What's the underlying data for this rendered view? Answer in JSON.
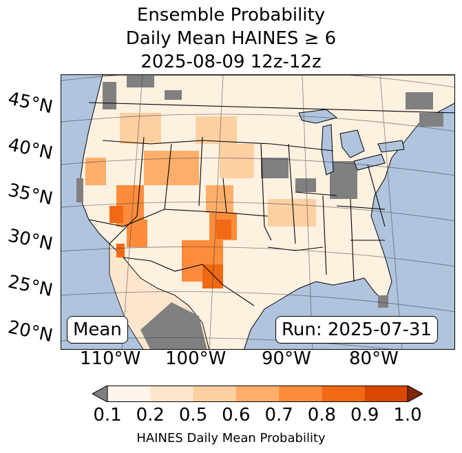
{
  "title": {
    "line1": "Ensemble Probability",
    "line2": "Daily Mean HAINES ≥ 6",
    "line3": "2025-08-09 12z-12z"
  },
  "map": {
    "region": "Continental United States",
    "lat_labels": [
      "45°N",
      "40°N",
      "35°N",
      "30°N",
      "25°N",
      "20°N"
    ],
    "lon_labels": [
      "110°W",
      "100°W",
      "90°W",
      "80°W"
    ],
    "stat_label": "Mean",
    "run_label": "Run: 2025-07-31",
    "ocean_color": "#b0c4de",
    "missing_color": "#808080"
  },
  "colorbar": {
    "ticks": [
      "0.1",
      "0.2",
      "0.5",
      "0.6",
      "0.7",
      "0.8",
      "0.9",
      "1.0"
    ],
    "colors": [
      "#fff5eb",
      "#fee6ce",
      "#fdd0a2",
      "#fdae6b",
      "#fd8d3c",
      "#f16913",
      "#d94801"
    ],
    "under_color": "#808080",
    "over_color": "#7f2704",
    "label": "HAINES Daily Mean Probability"
  }
}
